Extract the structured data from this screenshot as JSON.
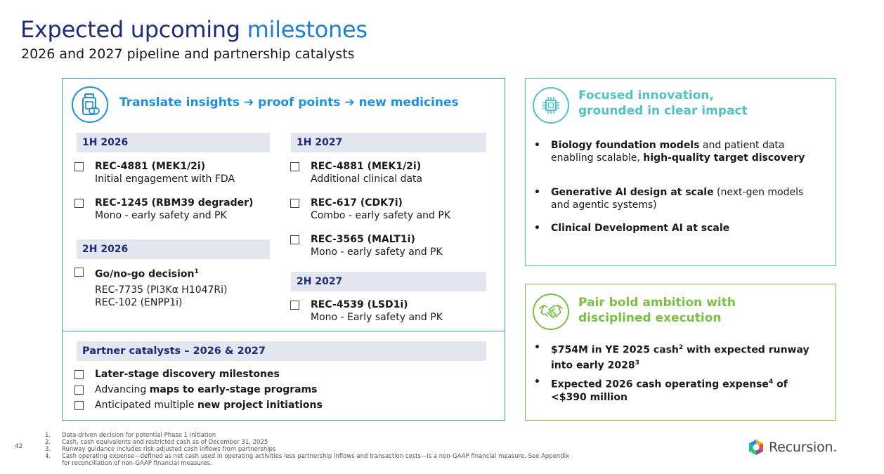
{
  "title": {
    "part1": "Expected upcoming",
    "part2": "milestones"
  },
  "subtitle": "2026 and 2027 pipeline and partnership catalysts",
  "left_panel": {
    "icon": "pill-bottle-icon",
    "heading": "Translate insights ➔ proof points ➔ new medicines",
    "col1": [
      {
        "period": "1H 2026",
        "items": [
          {
            "name": "REC-4881 (MEK1/2i)",
            "desc": "Initial engagement with FDA"
          },
          {
            "name": "REC-1245 (RBM39 degrader)",
            "desc": "Mono - early safety and PK"
          }
        ]
      },
      {
        "period": "2H 2026",
        "items": [
          {
            "name": "Go/no-go decision",
            "sup": "1",
            "desc_lines": [
              "REC-7735 (PI3Kα H1047Ri)",
              "REC-102 (ENPP1i)"
            ]
          }
        ]
      }
    ],
    "col2": [
      {
        "period": "1H 2027",
        "items": [
          {
            "name": "REC-4881 (MEK1/2i)",
            "desc": "Additional clinical data"
          },
          {
            "name": "REC-617 (CDK7i)",
            "desc": "Combo - early safety and PK"
          },
          {
            "name": "REC-3565 (MALT1i)",
            "desc": "Mono - early safety and PK"
          }
        ]
      },
      {
        "period": "2H 2027",
        "items": [
          {
            "name": "REC-4539 (LSD1i)",
            "desc": "Mono - Early safety and PK"
          }
        ]
      }
    ],
    "partner": {
      "heading": "Partner catalysts – 2026 & 2027",
      "items": [
        {
          "bold": "Later-stage discovery milestones"
        },
        {
          "normal": "Advancing ",
          "bold": "maps to early-stage programs"
        },
        {
          "normal": "Anticipated multiple ",
          "bold": "new project initiations"
        }
      ]
    }
  },
  "top_right": {
    "icon": "chip-icon",
    "heading_lines": [
      "Focused innovation,",
      "grounded in clear impact"
    ],
    "bullets": [
      {
        "parts": [
          {
            "b": "Biology foundation models"
          },
          {
            "t": " and patient data enabling scalable, "
          },
          {
            "b": "high-quality target discovery"
          }
        ]
      },
      {
        "parts": [
          {
            "b": "Generative AI design at scale"
          },
          {
            "t": " (next-gen models and agentic systems)"
          }
        ]
      },
      {
        "parts": [
          {
            "b": "Clinical Development AI at scale"
          }
        ]
      }
    ]
  },
  "bottom_right": {
    "icon": "handshake-icon",
    "heading_lines": [
      "Pair bold ambition with",
      "disciplined execution"
    ],
    "bullets": [
      {
        "parts": [
          {
            "b": "$754M in YE 2025 cash"
          },
          {
            "bsup": "2"
          },
          {
            "b": " with expected runway into early 2028"
          },
          {
            "bsup": "3"
          }
        ]
      },
      {
        "parts": [
          {
            "b": "Expected 2026 cash operating expense"
          },
          {
            "bsup": "4"
          },
          {
            "b": " of <$390 million"
          }
        ]
      }
    ]
  },
  "footnotes": [
    {
      "n": "1.",
      "text": "Data-driven decision for potential Phase 1 initiation"
    },
    {
      "n": "2.",
      "text": "Cash, cash equivalents and restricted cash as of December 31, 2025"
    },
    {
      "n": "3.",
      "text": "Runway guidance includes risk-adjusted cash inflows from partnerships"
    },
    {
      "n": "4.",
      "text": "Cash operating expense—defined as net cash used in operating activities less partnership inflows and transaction costs—is a non-GAAP financial measure. See Appendix"
    },
    {
      "n": "",
      "text": "for reconciliation of non-GAAP financial measures."
    }
  ],
  "page_number": "42",
  "logo": {
    "word": "Recursion."
  },
  "colors": {
    "navy": "#1f2a7a",
    "blue": "#1b8fe0",
    "green": "#7ac143",
    "teal": "#4fc3c8"
  }
}
